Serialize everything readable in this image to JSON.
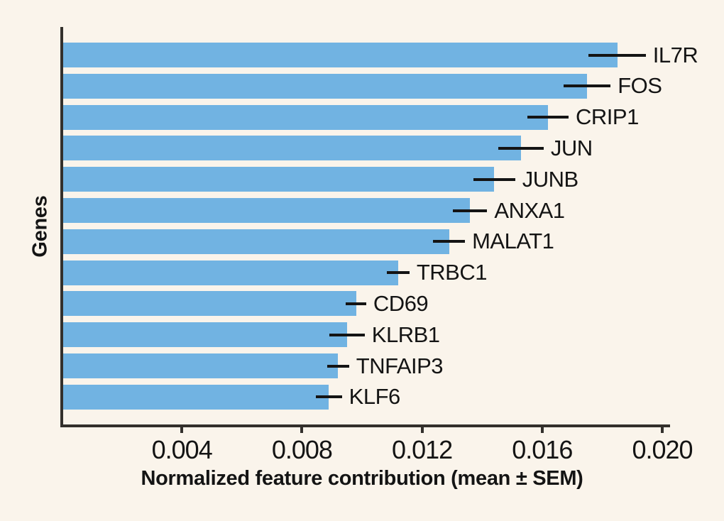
{
  "chart_data": {
    "type": "bar",
    "orientation": "horizontal",
    "title": "",
    "xlabel": "Normalized feature contribution (mean ± SEM)",
    "ylabel": "Genes",
    "xlim": [
      0,
      0.02
    ],
    "xticks": [
      {
        "value": 0.004,
        "label": "0.004"
      },
      {
        "value": 0.008,
        "label": "0.008"
      },
      {
        "value": 0.012,
        "label": "0.012"
      },
      {
        "value": 0.016,
        "label": "0.016"
      },
      {
        "value": 0.02,
        "label": "0.020"
      }
    ],
    "grid": false,
    "legend": "none",
    "categories": [
      "IL7R",
      "FOS",
      "CRIP1",
      "JUN",
      "JUNB",
      "ANXA1",
      "MALAT1",
      "TRBC1",
      "CD69",
      "KLRB1",
      "TNFAIP3",
      "KLF6"
    ],
    "series": [
      {
        "name": "Normalized feature contribution (mean)",
        "values": [
          0.0185,
          0.0175,
          0.0162,
          0.0153,
          0.0144,
          0.0136,
          0.0129,
          0.0112,
          0.0098,
          0.0095,
          0.0092,
          0.0089
        ],
        "sem": [
          0.00095,
          0.00078,
          0.00068,
          0.00075,
          0.0007,
          0.00057,
          0.00053,
          0.00038,
          0.00034,
          0.00059,
          0.00037,
          0.00043
        ]
      }
    ],
    "colors": {
      "bar": "#71B3E2",
      "background": "#FAF4EB",
      "axis": "#33302C",
      "text": "#141414",
      "error_bar": "#141414"
    }
  }
}
